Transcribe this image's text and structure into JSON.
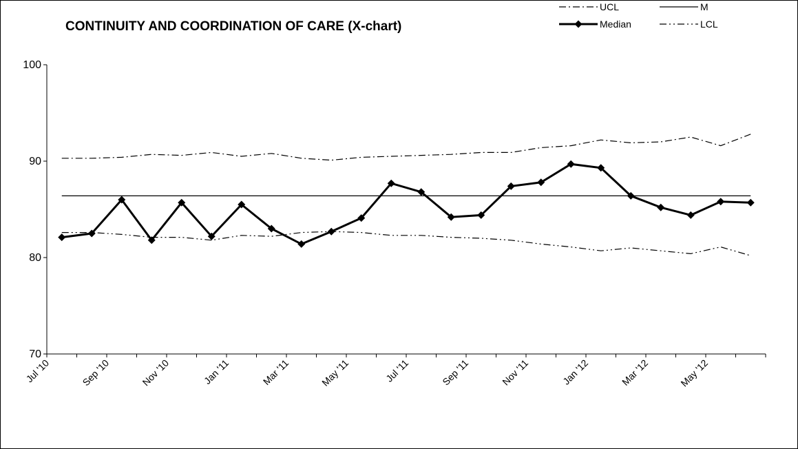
{
  "chart_data": {
    "type": "line",
    "title": "CONTINUITY AND COORDINATION OF CARE (X-chart)",
    "categories": [
      "Jul '10",
      null,
      "Sep '10",
      null,
      "Nov '10",
      null,
      "Jan '11",
      null,
      "Mar '11",
      null,
      "May '11",
      null,
      "Jul '11",
      null,
      "Sep '11",
      null,
      "Nov '11",
      null,
      "Jan '12",
      null,
      "Mar '12",
      null,
      "May '12",
      null
    ],
    "series": [
      {
        "name": "UCL",
        "color": "#000000",
        "style": "dash-dot",
        "values": [
          90.3,
          90.3,
          90.4,
          90.7,
          90.6,
          90.9,
          90.5,
          90.8,
          90.3,
          90.1,
          90.4,
          90.5,
          90.6,
          90.7,
          90.9,
          90.9,
          91.4,
          91.6,
          92.2,
          91.9,
          92.0,
          92.5,
          91.6,
          92.8
        ]
      },
      {
        "name": "M",
        "color": "#000000",
        "style": "solid",
        "values": [
          86.4,
          86.4,
          86.4,
          86.4,
          86.4,
          86.4,
          86.4,
          86.4,
          86.4,
          86.4,
          86.4,
          86.4,
          86.4,
          86.4,
          86.4,
          86.4,
          86.4,
          86.4,
          86.4,
          86.4,
          86.4,
          86.4,
          86.4,
          86.4
        ]
      },
      {
        "name": "Median",
        "color": "#000000",
        "style": "bold-diamond",
        "values": [
          82.1,
          82.5,
          86.0,
          81.8,
          85.7,
          82.2,
          85.5,
          83.0,
          81.4,
          82.7,
          84.1,
          87.7,
          86.8,
          84.2,
          84.4,
          87.4,
          87.8,
          89.7,
          89.3,
          86.4,
          85.2,
          84.4,
          85.8,
          85.7
        ]
      },
      {
        "name": "LCL",
        "color": "#000000",
        "style": "dash-dot-dot",
        "values": [
          82.6,
          82.6,
          82.4,
          82.1,
          82.1,
          81.8,
          82.3,
          82.2,
          82.6,
          82.7,
          82.6,
          82.3,
          82.3,
          82.1,
          82.0,
          81.8,
          81.4,
          81.1,
          80.7,
          81.0,
          80.7,
          80.4,
          81.1,
          80.2
        ]
      }
    ],
    "ylim": [
      70,
      100
    ],
    "yticks": [
      70,
      80,
      90,
      100
    ],
    "grid": false,
    "legend": "top-right"
  }
}
